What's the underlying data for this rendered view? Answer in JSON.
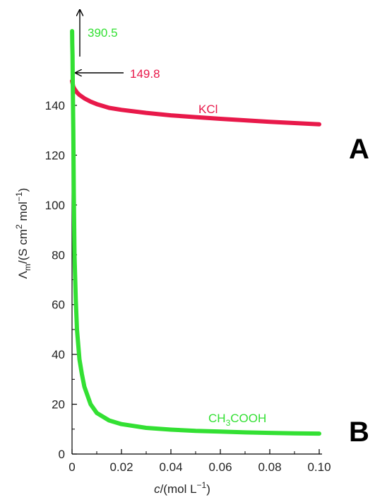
{
  "chart_data": {
    "type": "line",
    "xlabel_var": "c",
    "xlabel_rest": "/(mol L",
    "xlabel_sup": "−1",
    "xlabel_close": ")",
    "ylabel_sym": "Λ",
    "ylabel_sub": "m",
    "ylabel_mid": "/(S cm",
    "ylabel_sup1": "2",
    "ylabel_mid2": " mol",
    "ylabel_sup2": "−1",
    "ylabel_close": ")",
    "xlim": [
      0,
      0.1
    ],
    "ylim": [
      0,
      160
    ],
    "x_ticks": [
      "0",
      "0.02",
      "0.04",
      "0.06",
      "0.08",
      "0.10"
    ],
    "x_tick_values": [
      0,
      0.02,
      0.04,
      0.06,
      0.08,
      0.1
    ],
    "y_ticks": [
      "0",
      "20",
      "40",
      "60",
      "80",
      "100",
      "120",
      "140"
    ],
    "y_tick_values": [
      0,
      20,
      40,
      60,
      80,
      100,
      120,
      140
    ],
    "grid": false,
    "series": [
      {
        "name": "KCl",
        "color": "#e8194a",
        "x": [
          0,
          0.0005,
          0.001,
          0.002,
          0.003,
          0.005,
          0.0075,
          0.01,
          0.015,
          0.02,
          0.03,
          0.04,
          0.05,
          0.06,
          0.07,
          0.08,
          0.09,
          0.1
        ],
        "y": [
          149.8,
          147.5,
          146.6,
          145.2,
          144.2,
          142.8,
          141.5,
          140.5,
          139.0,
          138.2,
          137.0,
          136.0,
          135.3,
          134.6,
          134.0,
          133.4,
          132.9,
          132.4
        ]
      },
      {
        "name": "CH₃COOH",
        "label_main": "CH",
        "label_sub": "3",
        "label_rest": "COOH",
        "color": "#33e033",
        "x": [
          2e-05,
          5e-05,
          0.0001,
          0.0002,
          0.0003,
          0.0005,
          0.0007,
          0.001,
          0.0015,
          0.002,
          0.003,
          0.004,
          0.005,
          0.0075,
          0.01,
          0.015,
          0.02,
          0.03,
          0.04,
          0.05,
          0.06,
          0.07,
          0.08,
          0.09,
          0.1
        ],
        "y": [
          170,
          168,
          165,
          160,
          150,
          130,
          105,
          80,
          62,
          50,
          38,
          32,
          27,
          20,
          16.5,
          13.5,
          12,
          10.5,
          9.8,
          9.3,
          9.0,
          8.7,
          8.5,
          8.3,
          8.2
        ]
      }
    ],
    "annotations": [
      {
        "text": "390.5",
        "color": "#33e033"
      },
      {
        "text": "149.8",
        "color": "#e8194a"
      },
      {
        "text": "KCl",
        "color": "#e8194a"
      }
    ]
  },
  "panel_labels": [
    "A",
    "B"
  ]
}
